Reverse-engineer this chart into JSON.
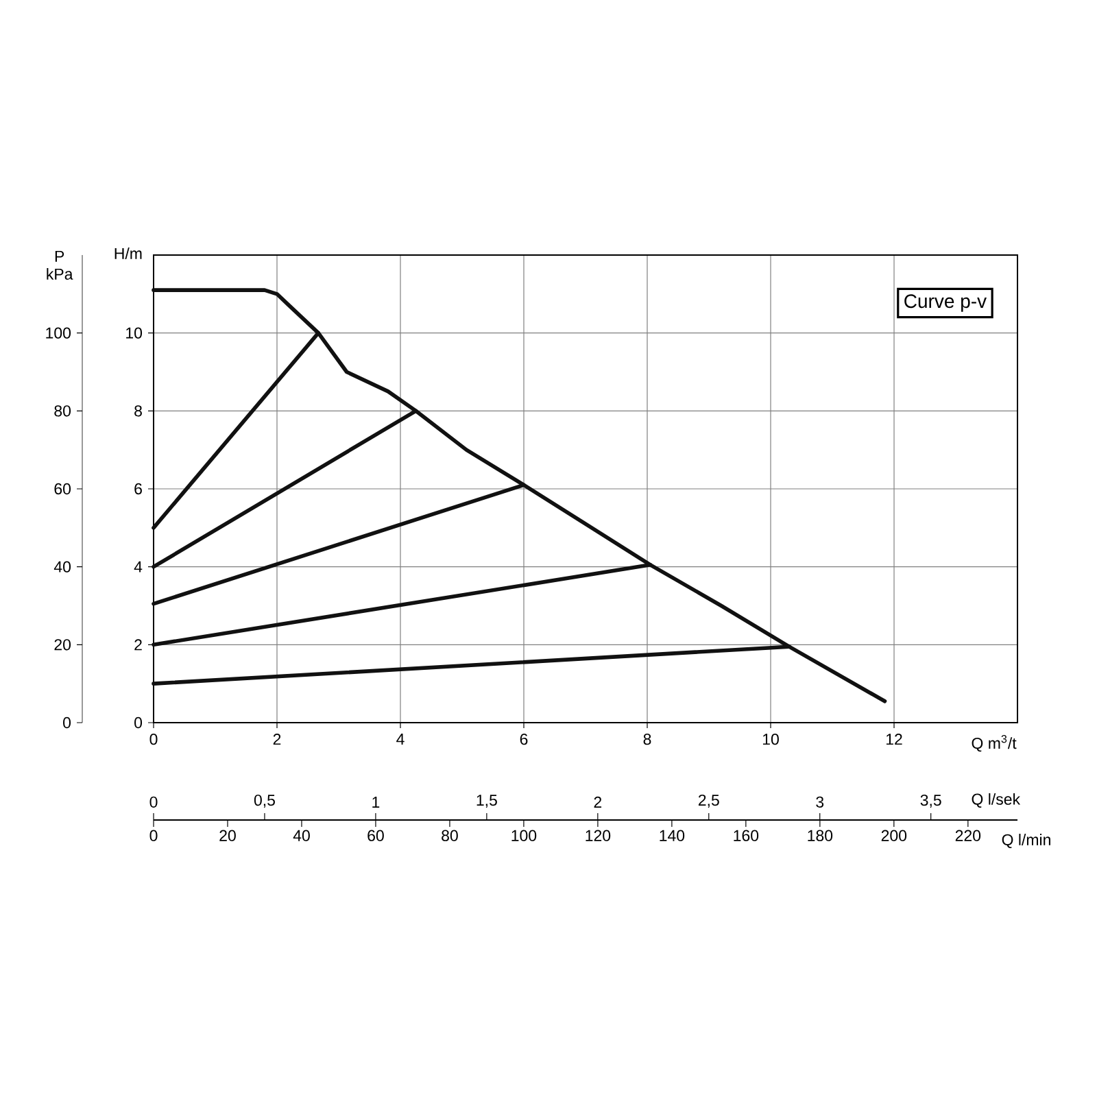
{
  "chart_data": {
    "type": "line",
    "xlabel": "Q m$^{3}$/t",
    "ylabel": "H/m",
    "y2label": "P kPa",
    "x2label": "Q l/sek",
    "annotations": [
      "Curve p-v",
      "0",
      "20",
      "40",
      "60",
      "80",
      "100",
      "120",
      "140",
      "160",
      "180",
      "200",
      "220",
      "Q l/min"
    ],
    "xlim": [
      0,
      14
    ],
    "xticks": [
      0,
      2,
      4,
      6,
      8,
      10,
      12
    ],
    "ylim": [
      0,
      12
    ],
    "yticks": [
      0,
      2,
      4,
      6,
      8,
      10
    ],
    "y2lim": [
      0,
      120
    ],
    "y2ticks": [
      0,
      20,
      40,
      60,
      80,
      100
    ],
    "x2lim": [
      0,
      3.89
    ],
    "x2ticks": [
      0,
      {
        "value": 0.5,
        "label": "0,5"
      },
      1,
      {
        "value": 1.5,
        "label": "1,5"
      },
      2,
      {
        "value": 2.5,
        "label": "2,5"
      },
      3,
      {
        "value": 3.5,
        "label": "3,5"
      }
    ],
    "grid": true,
    "series": [
      {
        "color": "#111111",
        "x": [
          0,
          1.8,
          2.0,
          2.2,
          2.67,
          3.13,
          3.8,
          4.25,
          5.07,
          6.0,
          7.0,
          8.05,
          9.2,
          10.3,
          11.85
        ],
        "values": [
          11.1,
          11.1,
          11.0,
          10.7,
          10.0,
          9.0,
          8.5,
          8.0,
          7.0,
          6.1,
          5.1,
          4.05,
          3.0,
          1.95,
          0.55
        ]
      },
      {
        "color": "#111111",
        "x": [
          0,
          2.67
        ],
        "values": [
          5.0,
          10.0
        ]
      },
      {
        "color": "#111111",
        "x": [
          0,
          4.25
        ],
        "values": [
          4.0,
          8.0
        ]
      },
      {
        "color": "#111111",
        "x": [
          0,
          6.0
        ],
        "values": [
          3.05,
          6.1
        ]
      },
      {
        "color": "#111111",
        "x": [
          0,
          8.05
        ],
        "values": [
          2.0,
          4.05
        ]
      },
      {
        "color": "#111111",
        "x": [
          0,
          10.3
        ],
        "values": [
          1.0,
          1.95
        ]
      }
    ]
  }
}
